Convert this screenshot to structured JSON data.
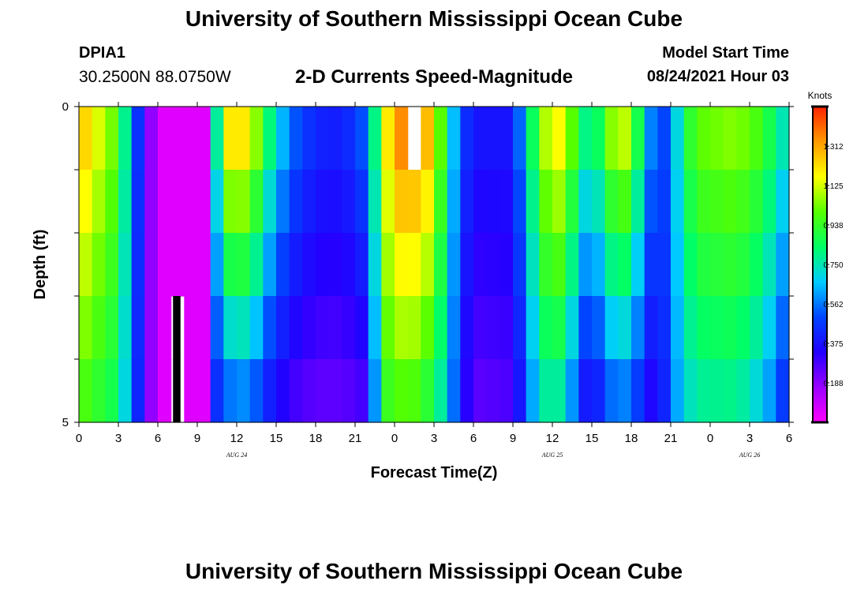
{
  "header": {
    "title": "University of Southern Mississippi Ocean Cube",
    "station_id": "DPIA1",
    "station_coords": "30.2500N  88.0750W",
    "chart_title": "2-D Currents Speed-Magnitude",
    "model_start_label": "Model Start Time",
    "model_start_value": "08/24/2021 Hour 03"
  },
  "footer": {
    "title": "University of Southern Mississippi Ocean Cube"
  },
  "colors": {
    "colormap": [
      "#ff00ff",
      "#9900ff",
      "#2200ff",
      "#0044ff",
      "#00ccff",
      "#00ff66",
      "#55ff00",
      "#ffff00",
      "#ff9900",
      "#ff2200"
    ],
    "missing_low": "#000000",
    "missing_high": "#ffffff"
  },
  "chart_data": {
    "type": "heatmap",
    "title": "2-D Currents Speed-Magnitude",
    "xlabel": "Forecast Time(Z)",
    "ylabel": "Depth (ft)",
    "x_start_hour": 0,
    "x_end_hour": 54,
    "x_step_hours": 1,
    "x_tick_labels": [
      "0",
      "3",
      "6",
      "9",
      "12",
      "15",
      "18",
      "21",
      "0",
      "3",
      "6",
      "9",
      "12",
      "15",
      "18",
      "21",
      "0",
      "3",
      "6"
    ],
    "date_labels": [
      {
        "label": "AUG  24",
        "hour": 12
      },
      {
        "label": "AUG  25",
        "hour": 36
      },
      {
        "label": "AUG  26",
        "hour": 51
      }
    ],
    "y_tick_labels": [
      {
        "label": "0",
        "depth": 0
      },
      {
        "label": "5",
        "depth": 5
      }
    ],
    "y_range": [
      0,
      5
    ],
    "depth_levels": 5,
    "colorbar": {
      "title": "Knots",
      "range": [
        0,
        1.5
      ],
      "tick_values": [
        0.188,
        0.375,
        0.562,
        0.75,
        0.938,
        1.125,
        1.312
      ],
      "tick_labels": [
        "0.188",
        "0.375",
        "0.562",
        "0.750",
        "0.938",
        "1.125",
        "1.312"
      ]
    },
    "keyframes": [
      {
        "hour": 0,
        "surface": 1.28,
        "bottom": 1.0
      },
      {
        "hour": 3,
        "surface": 0.98,
        "bottom": 0.85
      },
      {
        "hour": 4,
        "surface": 0.6,
        "bottom": 0.55
      },
      {
        "hour": 5,
        "surface": 0.3,
        "bottom": 0.3
      },
      {
        "hour": 6,
        "surface": 0.05,
        "bottom": 0.05
      },
      {
        "hour": 9.5,
        "surface": 0.05,
        "bottom": 0.05
      },
      {
        "hour": 10,
        "surface": 0.35,
        "bottom": 0.35
      },
      {
        "hour": 11,
        "surface": 1.2,
        "bottom": 0.55
      },
      {
        "hour": 13,
        "surface": 1.2,
        "bottom": 0.6
      },
      {
        "hour": 14,
        "surface": 0.9,
        "bottom": 0.45
      },
      {
        "hour": 16,
        "surface": 0.55,
        "bottom": 0.3
      },
      {
        "hour": 18,
        "surface": 0.42,
        "bottom": 0.25
      },
      {
        "hour": 20,
        "surface": 0.4,
        "bottom": 0.25
      },
      {
        "hour": 22,
        "surface": 0.55,
        "bottom": 0.3
      },
      {
        "hour": 23,
        "surface": 1.05,
        "bottom": 0.9
      },
      {
        "hour": 24,
        "surface": 1.35,
        "bottom": 1.0
      },
      {
        "hour": 26,
        "surface": 1.35,
        "bottom": 0.98
      },
      {
        "hour": 27,
        "surface": 1.2,
        "bottom": 0.85
      },
      {
        "hour": 28,
        "surface": 0.8,
        "bottom": 0.7
      },
      {
        "hour": 29,
        "surface": 0.5,
        "bottom": 0.4
      },
      {
        "hour": 30,
        "surface": 0.38,
        "bottom": 0.25
      },
      {
        "hour": 33,
        "surface": 0.38,
        "bottom": 0.28
      },
      {
        "hour": 34,
        "surface": 0.7,
        "bottom": 0.5
      },
      {
        "hour": 35,
        "surface": 1.0,
        "bottom": 0.75
      },
      {
        "hour": 36,
        "surface": 1.18,
        "bottom": 0.8
      },
      {
        "hour": 37,
        "surface": 1.15,
        "bottom": 0.75
      },
      {
        "hour": 38,
        "surface": 0.85,
        "bottom": 0.45
      },
      {
        "hour": 39,
        "surface": 0.75,
        "bottom": 0.35
      },
      {
        "hour": 40,
        "surface": 0.95,
        "bottom": 0.5
      },
      {
        "hour": 41,
        "surface": 1.15,
        "bottom": 0.6
      },
      {
        "hour": 42,
        "surface": 1.05,
        "bottom": 0.55
      },
      {
        "hour": 43,
        "surface": 0.7,
        "bottom": 0.4
      },
      {
        "hour": 44,
        "surface": 0.45,
        "bottom": 0.3
      },
      {
        "hour": 45,
        "surface": 0.55,
        "bottom": 0.55
      },
      {
        "hour": 46,
        "surface": 0.85,
        "bottom": 0.7
      },
      {
        "hour": 47,
        "surface": 1.0,
        "bottom": 0.78
      },
      {
        "hour": 50,
        "surface": 1.05,
        "bottom": 0.8
      },
      {
        "hour": 52,
        "surface": 0.95,
        "bottom": 0.68
      },
      {
        "hour": 53,
        "surface": 0.8,
        "bottom": 0.55
      },
      {
        "hour": 54,
        "surface": 0.7,
        "bottom": 0.4
      }
    ],
    "missing_cells": [
      {
        "hour": 7,
        "levels": [
          3,
          4
        ],
        "kind": "low"
      },
      {
        "hour": 25,
        "levels": [
          0
        ],
        "kind": "high"
      }
    ]
  }
}
